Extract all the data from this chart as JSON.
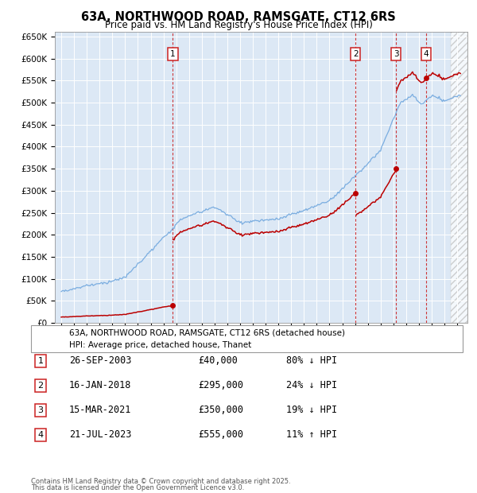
{
  "title": "63A, NORTHWOOD ROAD, RAMSGATE, CT12 6RS",
  "subtitle": "Price paid vs. HM Land Registry's House Price Index (HPI)",
  "ylim": [
    0,
    660000
  ],
  "xlim_start": 1994.5,
  "xlim_end": 2026.8,
  "sales": [
    {
      "num": 1,
      "date": "26-SEP-2003",
      "year": 2003.73,
      "price": 40000,
      "pct": "80%",
      "dir": "↓"
    },
    {
      "num": 2,
      "date": "16-JAN-2018",
      "year": 2018.04,
      "price": 295000,
      "pct": "24%",
      "dir": "↓"
    },
    {
      "num": 3,
      "date": "15-MAR-2021",
      "year": 2021.2,
      "price": 350000,
      "pct": "19%",
      "dir": "↓"
    },
    {
      "num": 4,
      "date": "21-JUL-2023",
      "year": 2023.55,
      "price": 555000,
      "pct": "11%",
      "dir": "↑"
    }
  ],
  "legend_label_red": "63A, NORTHWOOD ROAD, RAMSGATE, CT12 6RS (detached house)",
  "legend_label_blue": "HPI: Average price, detached house, Thanet",
  "footer_line1": "Contains HM Land Registry data © Crown copyright and database right 2025.",
  "footer_line2": "This data is licensed under the Open Government Licence v3.0.",
  "bg_color": "#dce8f5",
  "grid_color": "#ffffff",
  "hpi_color": "#7aade0",
  "sale_color": "#bb0000",
  "vline_color": "#cc2222",
  "hatch_color": "#cccccc"
}
